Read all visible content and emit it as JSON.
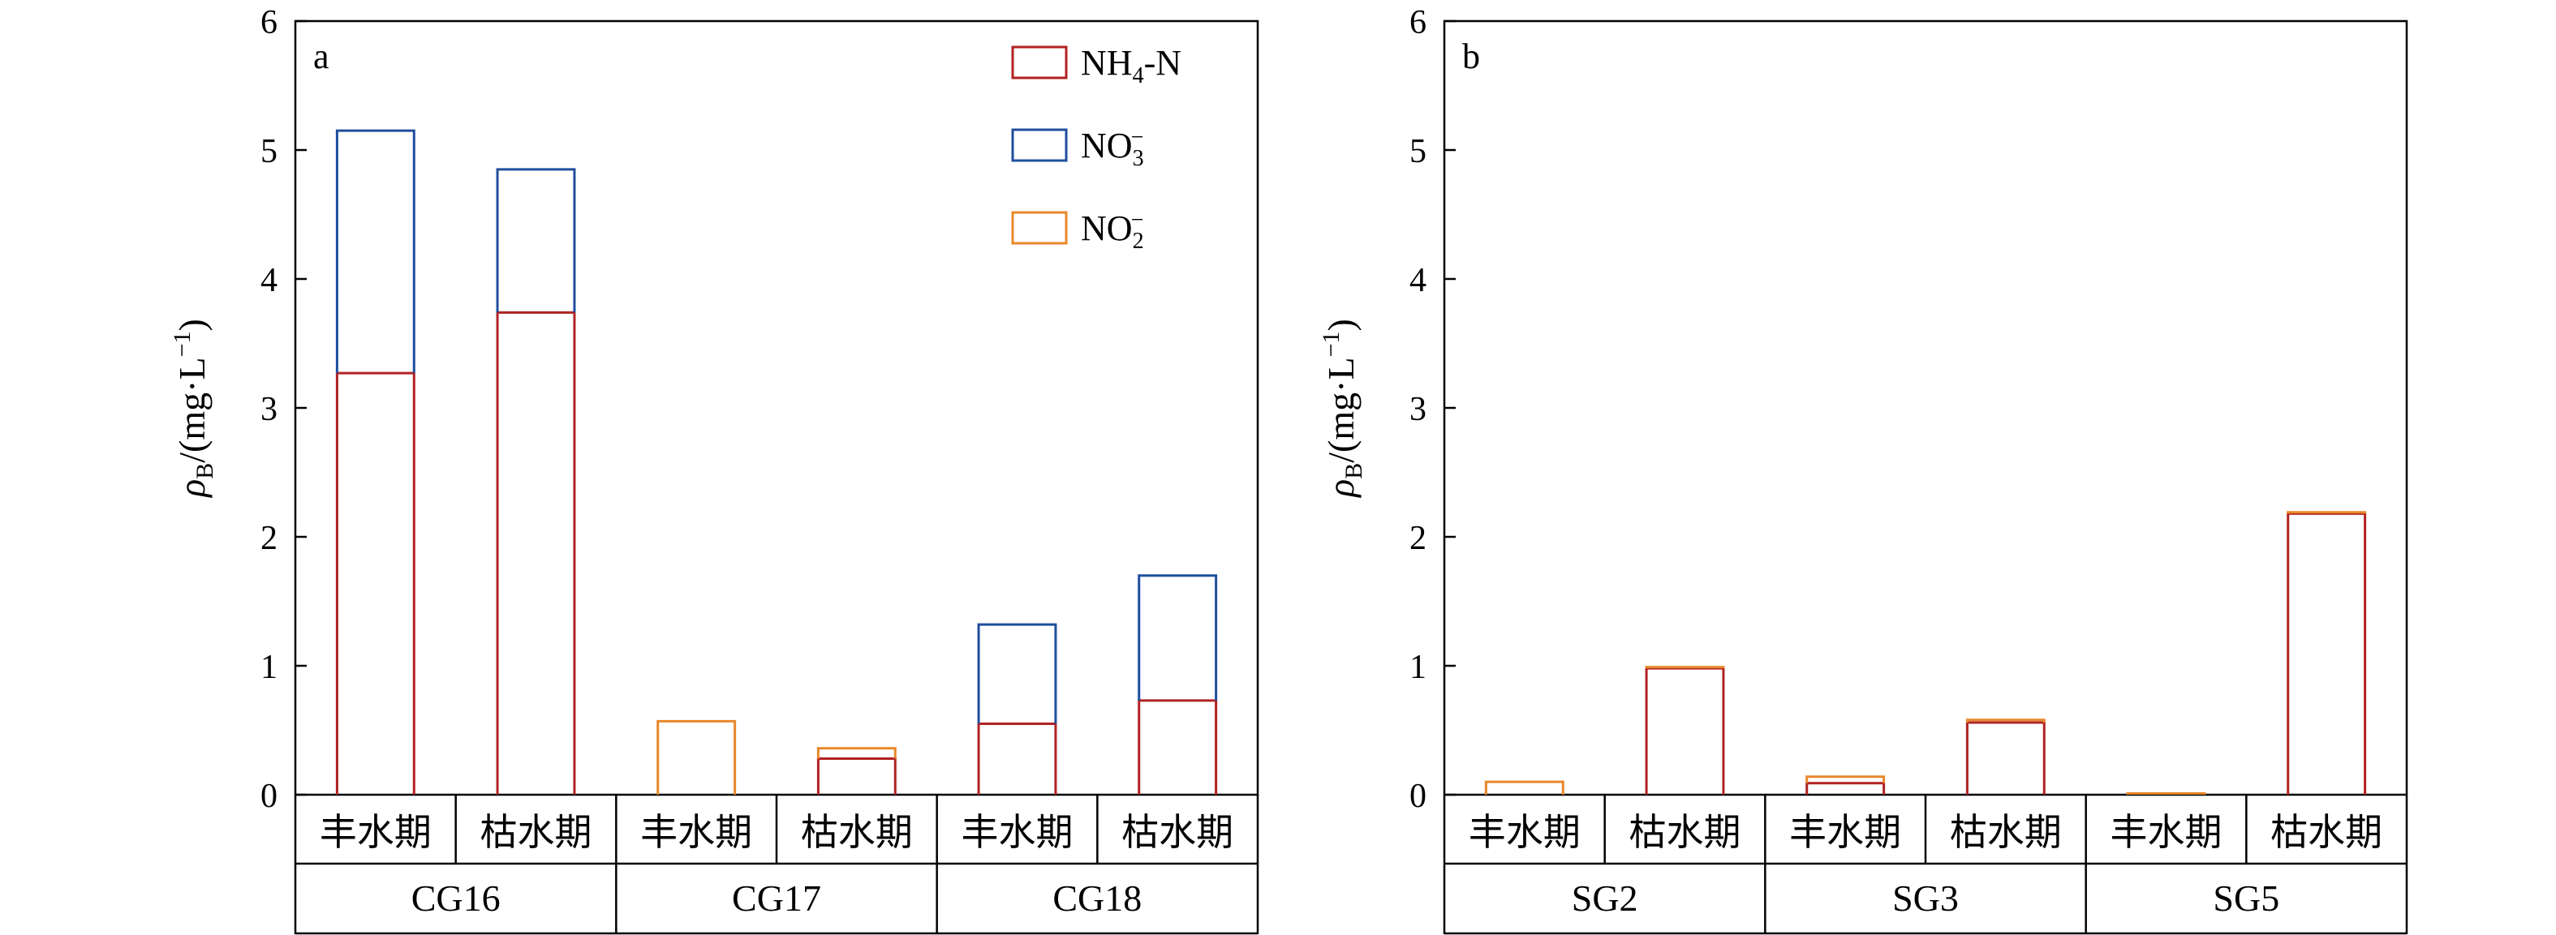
{
  "ylabel": {
    "rho": "ρ",
    "sub": "B",
    "unit_pre": "/(mg·L",
    "unit_sup": "−1",
    "unit_post": ")"
  },
  "legend": [
    {
      "key": "nh4",
      "parts": [
        "NH",
        "4",
        "-N"
      ],
      "color": "#b22222"
    },
    {
      "key": "no3",
      "parts": [
        "NO",
        "3",
        "−"
      ],
      "color": "#1f4e9e"
    },
    {
      "key": "no2",
      "parts": [
        "NO",
        "2",
        "−"
      ],
      "color": "#e8882a"
    }
  ],
  "period_labels": [
    "丰水期",
    "枯水期"
  ],
  "chart_data": [
    {
      "type": "bar",
      "stacked": true,
      "panel_label": "a",
      "ylim": [
        0,
        6
      ],
      "yticks": [
        0,
        1,
        2,
        3,
        4,
        5,
        6
      ],
      "groups": [
        "CG16",
        "CG17",
        "CG18"
      ],
      "categories": [
        "丰水期",
        "枯水期",
        "丰水期",
        "枯水期",
        "丰水期",
        "枯水期"
      ],
      "legend_position": "top-right",
      "series": [
        {
          "name": "NH4-N",
          "key": "nh4",
          "values": [
            3.27,
            3.74,
            0,
            0.28,
            0.55,
            0.73
          ]
        },
        {
          "name": "NO3−",
          "key": "no3",
          "values": [
            1.88,
            1.11,
            0,
            0,
            0.77,
            0.97
          ]
        },
        {
          "name": "NO2−",
          "key": "no2",
          "values": [
            0,
            0,
            0.57,
            0.08,
            0,
            0
          ]
        }
      ]
    },
    {
      "type": "bar",
      "stacked": true,
      "panel_label": "b",
      "ylim": [
        0,
        6
      ],
      "yticks": [
        0,
        1,
        2,
        3,
        4,
        5,
        6
      ],
      "groups": [
        "SG2",
        "SG3",
        "SG5"
      ],
      "categories": [
        "丰水期",
        "枯水期",
        "丰水期",
        "枯水期",
        "丰水期",
        "枯水期"
      ],
      "series": [
        {
          "name": "NH4-N",
          "key": "nh4",
          "values": [
            0,
            0.98,
            0.09,
            0.56,
            0,
            2.18
          ]
        },
        {
          "name": "NO3−",
          "key": "no3",
          "values": [
            0,
            0,
            0,
            0,
            0,
            0
          ]
        },
        {
          "name": "NO2−",
          "key": "no2",
          "values": [
            0.1,
            0.01,
            0.05,
            0.02,
            0.01,
            0.01
          ]
        }
      ]
    }
  ]
}
